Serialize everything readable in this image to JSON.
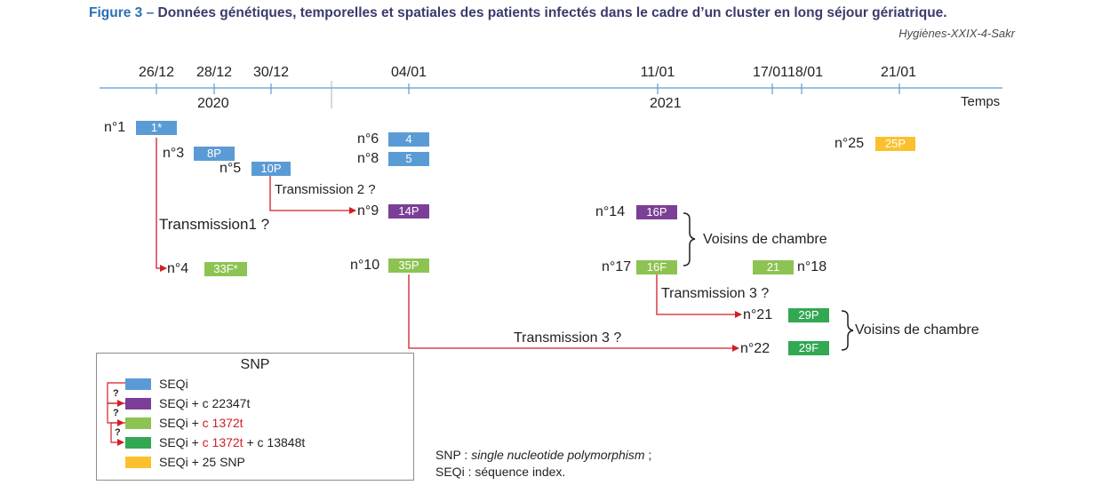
{
  "figure": {
    "label": "Figure 3 – ",
    "title": "Données génétiques, temporelles et spatiales des patients infectés dans le cadre d’un cluster en long séjour gériatrique.",
    "source": "Hygiènes-XXIX-4-Sakr"
  },
  "colors": {
    "seqi": "#5b9bd5",
    "c22347t": "#7b3f97",
    "c1372t": "#8dc352",
    "c1372t_c13848t": "#32a852",
    "snp25": "#fbc02d",
    "arrow": "#d01f26",
    "axis": "#5b9bd5"
  },
  "axis": {
    "ticks": [
      "26/12",
      "28/12",
      "30/12",
      "04/01",
      "11/01",
      "17/01",
      "18/01",
      "21/01"
    ],
    "years": [
      "2020",
      "2021"
    ],
    "label": "Temps"
  },
  "patients": [
    {
      "name": "n°1",
      "code": "1*",
      "variant": "seqi"
    },
    {
      "name": "n°3",
      "code": "8P",
      "variant": "seqi"
    },
    {
      "name": "n°5",
      "code": "10P",
      "variant": "seqi"
    },
    {
      "name": "n°6",
      "code": "4",
      "variant": "seqi"
    },
    {
      "name": "n°8",
      "code": "5",
      "variant": "seqi"
    },
    {
      "name": "n°9",
      "code": "14P",
      "variant": "c22347t"
    },
    {
      "name": "n°4",
      "code": "33F*",
      "variant": "c1372t"
    },
    {
      "name": "n°10",
      "code": "35P",
      "variant": "c1372t"
    },
    {
      "name": "n°14",
      "code": "16P",
      "variant": "c22347t"
    },
    {
      "name": "n°17",
      "code": "16F",
      "variant": "c1372t"
    },
    {
      "name": "n°18",
      "code": "21",
      "variant": "c1372t"
    },
    {
      "name": "n°25",
      "code": "25P",
      "variant": "snp25"
    },
    {
      "name": "n°21",
      "code": "29P",
      "variant": "c1372t_c13848t"
    },
    {
      "name": "n°22",
      "code": "29F",
      "variant": "c1372t_c13848t"
    }
  ],
  "transmissions": [
    "Transmission1 ?",
    "Transmission 2 ?",
    "Transmission 3 ?",
    "Transmission 3 ?"
  ],
  "neighbors": [
    "Voisins de chambre",
    "Voisins de chambre"
  ],
  "legend": {
    "title": "SNP",
    "items": [
      {
        "prefix": "SEQi",
        "red": "",
        "suffix": ""
      },
      {
        "prefix": "SEQi + c 22347t",
        "red": "",
        "suffix": ""
      },
      {
        "prefix": "SEQi + ",
        "red": "c 1372t",
        "suffix": ""
      },
      {
        "prefix": "SEQi + ",
        "red": "c 1372t",
        "suffix": " + c 13848t"
      },
      {
        "prefix": "SEQi + 25 SNP",
        "red": "",
        "suffix": ""
      }
    ],
    "question": "?"
  },
  "footnotes": {
    "snp_abbr": "SNP : ",
    "snp_def": "single nucleotide polymorphism",
    "snp_end": " ;",
    "seqi": "SEQi : séquence index."
  }
}
